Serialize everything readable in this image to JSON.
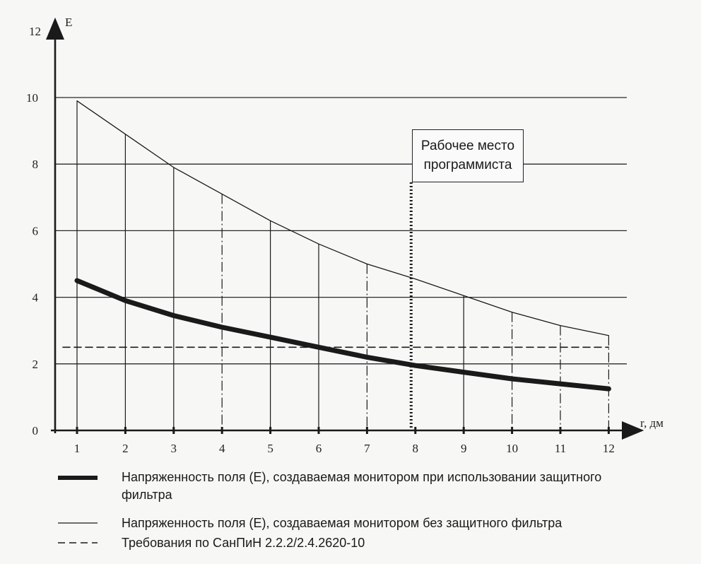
{
  "chart_data": {
    "type": "line",
    "xlabel": "r, дм",
    "ylabel": "E",
    "xlim": [
      1,
      12
    ],
    "ylim": [
      0,
      12
    ],
    "x_ticks": [
      1,
      2,
      3,
      4,
      5,
      6,
      7,
      8,
      9,
      10,
      11,
      12
    ],
    "y_ticks": [
      0,
      2,
      4,
      6,
      8,
      10,
      12
    ],
    "grid": "horizontal",
    "x": [
      1,
      2,
      3,
      4,
      5,
      6,
      7,
      8,
      9,
      10,
      11,
      12
    ],
    "series": [
      {
        "name": "Напряженность поля (Е), создаваемая монитором при использовании защитного фильтра",
        "style": "thick",
        "values": [
          4.5,
          3.9,
          3.45,
          3.1,
          2.8,
          2.5,
          2.2,
          1.95,
          1.75,
          1.55,
          1.4,
          1.25
        ]
      },
      {
        "name": "Напряженность поля (Е), создаваемая монитором без защитного фильтра",
        "style": "thin",
        "values": [
          9.9,
          8.9,
          7.9,
          7.1,
          6.3,
          5.6,
          5.0,
          4.55,
          4.05,
          3.55,
          3.15,
          2.85
        ]
      },
      {
        "name": "Требования по СанПиН 2.2.2/2.4.2620-10",
        "style": "dashed",
        "values": [
          2.5,
          2.5,
          2.5,
          2.5,
          2.5,
          2.5,
          2.5,
          2.5,
          2.5,
          2.5,
          2.5,
          2.5
        ]
      }
    ],
    "annotation": {
      "text_line1": "Рабочее место",
      "text_line2": "программиста",
      "x": 8
    }
  },
  "colors": {
    "ink": "#1a1a1a",
    "grid": "#2a2a2a",
    "background": "#f7f7f5"
  }
}
